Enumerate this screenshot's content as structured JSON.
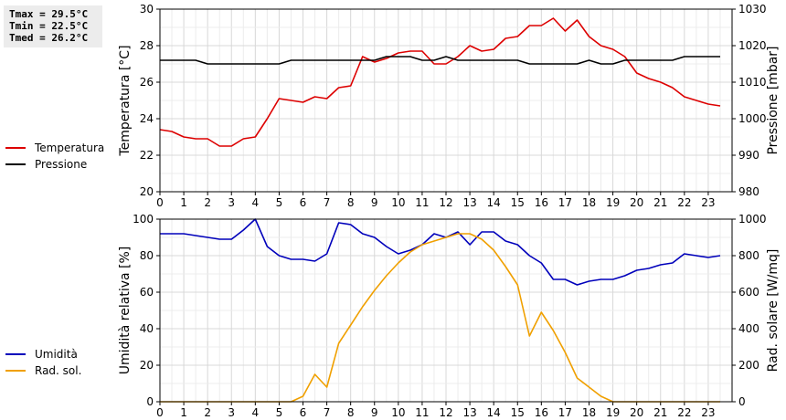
{
  "stats": {
    "tmax": "Tmax = 29.5°C",
    "tmin": "Tmin = 22.5°C",
    "tmed": "Tmed = 26.2°C"
  },
  "colors": {
    "temperature": "#dd0000",
    "pressure": "#000000",
    "humidity": "#0000bb",
    "radiation": "#f0a000",
    "grid": "#d8d8d8"
  },
  "legend_top": [
    {
      "label": "Temperatura",
      "color": "#dd0000"
    },
    {
      "label": "Pressione",
      "color": "#000000"
    }
  ],
  "legend_bottom": [
    {
      "label": "Umidità",
      "color": "#0000bb"
    },
    {
      "label": "Rad. sol.",
      "color": "#f0a000"
    }
  ],
  "chart_data": [
    {
      "type": "line",
      "x_ticks": [
        "0",
        "1",
        "2",
        "3",
        "4",
        "5",
        "6",
        "7",
        "8",
        "9",
        "10",
        "11",
        "12",
        "13",
        "14",
        "15",
        "16",
        "17",
        "18",
        "19",
        "20",
        "21",
        "22",
        "23"
      ],
      "xlim": [
        0,
        24
      ],
      "ylabel": "Temperatura [°C]",
      "ylim": [
        20,
        30
      ],
      "y_ticks": [
        "20",
        "22",
        "24",
        "26",
        "28",
        "30"
      ],
      "y2label": "Pressione [mbar]",
      "y2lim": [
        980,
        1030
      ],
      "y2_ticks": [
        "980",
        "990",
        "1000",
        "1010",
        "1020",
        "1030"
      ],
      "grid": true,
      "series": [
        {
          "name": "Temperatura",
          "axis": "left",
          "x": [
            0,
            0.5,
            1,
            1.5,
            2,
            2.5,
            3,
            3.5,
            4,
            4.5,
            5,
            5.5,
            6,
            6.5,
            7,
            7.5,
            8,
            8.5,
            9,
            9.5,
            10,
            10.5,
            11,
            11.5,
            12,
            12.5,
            13,
            13.5,
            14,
            14.5,
            15,
            15.5,
            16,
            16.5,
            17,
            17.5,
            18,
            18.5,
            19,
            19.5,
            20,
            20.5,
            21,
            21.5,
            22,
            22.5,
            23,
            23.5
          ],
          "y": [
            23.4,
            23.3,
            23.0,
            22.9,
            22.9,
            22.5,
            22.5,
            22.9,
            23.0,
            24.0,
            25.1,
            25.0,
            24.9,
            25.2,
            25.1,
            25.7,
            25.8,
            27.4,
            27.1,
            27.3,
            27.6,
            27.7,
            27.7,
            27.0,
            27.0,
            27.4,
            28.0,
            27.7,
            27.8,
            28.4,
            28.5,
            29.1,
            29.1,
            29.5,
            28.8,
            29.4,
            28.5,
            28.0,
            27.8,
            27.4,
            26.5,
            26.2,
            26.0,
            25.7,
            25.2,
            25.0,
            24.8,
            24.7
          ]
        },
        {
          "name": "Pressione",
          "axis": "right",
          "x": [
            0,
            0.5,
            1,
            1.5,
            2,
            2.5,
            3,
            3.5,
            4,
            4.5,
            5,
            5.5,
            6,
            6.5,
            7,
            7.5,
            8,
            8.5,
            9,
            9.5,
            10,
            10.5,
            11,
            11.5,
            12,
            12.5,
            13,
            13.5,
            14,
            14.5,
            15,
            15.5,
            16,
            16.5,
            17,
            17.5,
            18,
            18.5,
            19,
            19.5,
            20,
            20.5,
            21,
            21.5,
            22,
            22.5,
            23,
            23.5
          ],
          "y": [
            1016,
            1016,
            1016,
            1016,
            1015,
            1015,
            1015,
            1015,
            1015,
            1015,
            1015,
            1016,
            1016,
            1016,
            1016,
            1016,
            1016,
            1016,
            1016,
            1017,
            1017,
            1017,
            1016,
            1016,
            1017,
            1016,
            1016,
            1016,
            1016,
            1016,
            1016,
            1015,
            1015,
            1015,
            1015,
            1015,
            1016,
            1015,
            1015,
            1016,
            1016,
            1016,
            1016,
            1016,
            1017,
            1017,
            1017,
            1017
          ]
        }
      ]
    },
    {
      "type": "line",
      "x_ticks": [
        "0",
        "1",
        "2",
        "3",
        "4",
        "5",
        "6",
        "7",
        "8",
        "9",
        "10",
        "11",
        "12",
        "13",
        "14",
        "15",
        "16",
        "17",
        "18",
        "19",
        "20",
        "21",
        "22",
        "23"
      ],
      "xlim": [
        0,
        24
      ],
      "ylabel": "Umidità relativa [%]",
      "ylim": [
        0,
        100
      ],
      "y_ticks": [
        "0",
        "20",
        "40",
        "60",
        "80",
        "100"
      ],
      "y2label": "Rad. solare [W/mq]",
      "y2lim": [
        0,
        1000
      ],
      "y2_ticks": [
        "0",
        "200",
        "400",
        "600",
        "800",
        "1000"
      ],
      "grid": true,
      "series": [
        {
          "name": "Umidità",
          "axis": "left",
          "x": [
            0,
            0.5,
            1,
            1.5,
            2,
            2.5,
            3,
            3.5,
            4,
            4.5,
            5,
            5.5,
            6,
            6.5,
            7,
            7.5,
            8,
            8.5,
            9,
            9.5,
            10,
            10.5,
            11,
            11.5,
            12,
            12.5,
            13,
            13.5,
            14,
            14.5,
            15,
            15.5,
            16,
            16.5,
            17,
            17.5,
            18,
            18.5,
            19,
            19.5,
            20,
            20.5,
            21,
            21.5,
            22,
            22.5,
            23,
            23.5
          ],
          "y": [
            92,
            92,
            92,
            91,
            90,
            89,
            89,
            94,
            100,
            85,
            80,
            78,
            78,
            77,
            81,
            98,
            97,
            92,
            90,
            85,
            81,
            83,
            86,
            92,
            90,
            93,
            86,
            93,
            93,
            88,
            86,
            80,
            76,
            67,
            67,
            64,
            66,
            67,
            67,
            69,
            72,
            73,
            75,
            76,
            81,
            80,
            79,
            80
          ]
        },
        {
          "name": "Rad. sol.",
          "axis": "right",
          "x": [
            0,
            0.5,
            1,
            1.5,
            2,
            2.5,
            3,
            3.5,
            4,
            4.5,
            5,
            5.5,
            6,
            6.5,
            7,
            7.5,
            8,
            8.5,
            9,
            9.5,
            10,
            10.5,
            11,
            11.5,
            12,
            12.5,
            13,
            13.5,
            14,
            14.5,
            15,
            15.5,
            16,
            16.5,
            17,
            17.5,
            18,
            18.5,
            19,
            19.5,
            20,
            20.5,
            21,
            21.5,
            22,
            22.5,
            23,
            23.5
          ],
          "y": [
            0,
            0,
            0,
            0,
            0,
            0,
            0,
            0,
            0,
            0,
            0,
            0,
            30,
            150,
            80,
            320,
            420,
            520,
            610,
            690,
            760,
            820,
            860,
            880,
            900,
            920,
            920,
            890,
            830,
            740,
            640,
            360,
            490,
            390,
            270,
            130,
            80,
            30,
            0,
            0,
            0,
            0,
            0,
            0,
            0,
            0,
            0,
            0
          ]
        }
      ]
    }
  ]
}
